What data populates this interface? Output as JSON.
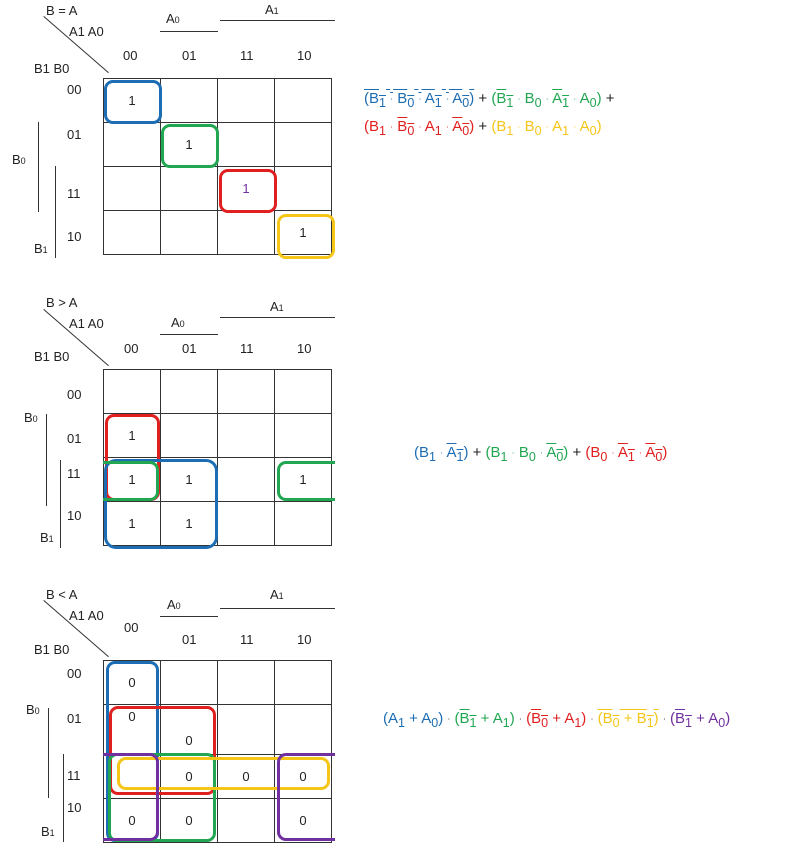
{
  "maps": [
    {
      "id": "eq",
      "title": "B = A",
      "col_header": "A1 A0",
      "row_header": "B1 B0",
      "a0_label": "A0",
      "a1_label": "A1",
      "b0_label": "B0",
      "b1_label": "B1",
      "cols": [
        "00",
        "01",
        "11",
        "10"
      ],
      "rows": [
        "00",
        "01",
        "11",
        "10"
      ],
      "cells": [
        [
          "1",
          "",
          "",
          ""
        ],
        [
          "",
          "1",
          "",
          ""
        ],
        [
          "",
          "",
          "1",
          ""
        ],
        [
          "",
          "",
          "",
          "1"
        ]
      ],
      "groups": [
        "blue",
        "green",
        "red",
        "yellow"
      ]
    },
    {
      "id": "gt",
      "title": "B > A",
      "col_header": "A1 A0",
      "row_header": "B1 B0",
      "a0_label": "A0",
      "a1_label": "A1",
      "b0_label": "B0",
      "b1_label": "B1",
      "cols": [
        "00",
        "01",
        "11",
        "10"
      ],
      "rows": [
        "00",
        "01",
        "11",
        "10"
      ],
      "cells": [
        [
          "",
          "",
          "",
          ""
        ],
        [
          "1",
          "",
          "",
          ""
        ],
        [
          "1",
          "1",
          "",
          "1"
        ],
        [
          "1",
          "1",
          "",
          ""
        ]
      ],
      "groups": [
        "red",
        "blue",
        "green"
      ]
    },
    {
      "id": "lt",
      "title": "B < A",
      "col_header": "A1 A0",
      "row_header": "B1 B0",
      "a0_label": "A0",
      "a1_label": "A1",
      "b0_label": "B0",
      "b1_label": "B1",
      "cols": [
        "00",
        "01",
        "11",
        "10"
      ],
      "rows": [
        "00",
        "01",
        "11",
        "10"
      ],
      "cells": [
        [
          "0",
          "",
          "",
          ""
        ],
        [
          "0",
          "0",
          "",
          ""
        ],
        [
          "",
          "0",
          "0",
          "0"
        ],
        [
          "0",
          "0",
          "",
          "0"
        ]
      ],
      "groups": [
        "blue",
        "red",
        "green",
        "yellow",
        "purple"
      ]
    }
  ],
  "colors": {
    "blue": "#1c6db3",
    "green": "#21a651",
    "red": "#e01f1f",
    "yellow": "#f5c518",
    "purple": "#7030a0",
    "grid": "#333333"
  }
}
